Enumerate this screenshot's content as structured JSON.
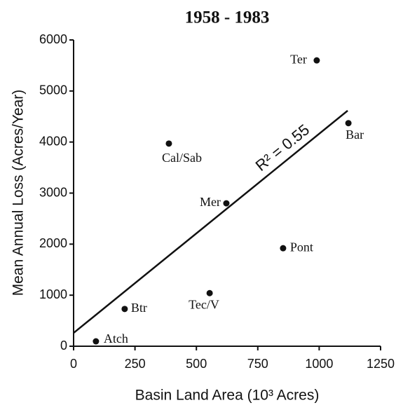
{
  "chart_data": {
    "type": "scatter",
    "title": "1958 - 1983",
    "x_label": "Basin Land Area (10³ Acres)",
    "y_label": "Mean Annual Loss (Acres/Year)",
    "xlim": [
      0,
      1250
    ],
    "ylim": [
      0,
      6000
    ],
    "xticks": [
      0,
      250,
      500,
      750,
      1000,
      1250
    ],
    "yticks": [
      0,
      1000,
      2000,
      3000,
      4000,
      5000,
      6000
    ],
    "color": "#111111",
    "series": [
      {
        "labels": [
          "Ter",
          "Bar",
          "Cal/Sab",
          "Mer",
          "Pont",
          "Tec/V",
          "Btr",
          "Atch"
        ],
        "x": [
          990,
          1119,
          388,
          622,
          853,
          554,
          208,
          91
        ],
        "values": [
          5600,
          4370,
          3970,
          2800,
          1920,
          1040,
          730,
          96
        ]
      }
    ],
    "fit_line": {
      "x": [
        0,
        1116
      ],
      "values": [
        260,
        4615
      ]
    },
    "annotation": "R² = 0.55"
  }
}
